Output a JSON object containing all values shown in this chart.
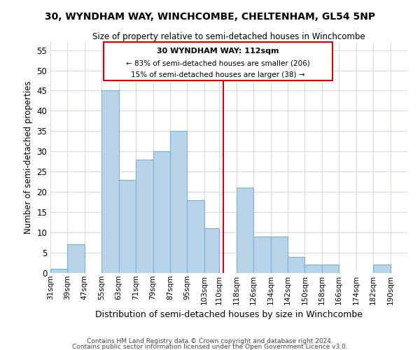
{
  "title": "30, WYNDHAM WAY, WINCHCOMBE, CHELTENHAM, GL54 5NP",
  "subtitle": "Size of property relative to semi-detached houses in Winchcombe",
  "xlabel": "Distribution of semi-detached houses by size in Winchcombe",
  "ylabel": "Number of semi-detached properties",
  "bin_labels": [
    "31sqm",
    "39sqm",
    "47sqm",
    "55sqm",
    "63sqm",
    "71sqm",
    "79sqm",
    "87sqm",
    "95sqm",
    "103sqm",
    "110sqm",
    "118sqm",
    "126sqm",
    "134sqm",
    "142sqm",
    "150sqm",
    "158sqm",
    "166sqm",
    "174sqm",
    "182sqm",
    "190sqm"
  ],
  "bin_edges": [
    31,
    39,
    47,
    55,
    63,
    71,
    79,
    87,
    95,
    103,
    110,
    118,
    126,
    134,
    142,
    150,
    158,
    166,
    174,
    182,
    190
  ],
  "bar_heights": [
    1,
    7,
    0,
    45,
    23,
    28,
    30,
    35,
    18,
    11,
    0,
    21,
    9,
    9,
    4,
    2,
    2,
    0,
    0,
    2,
    0
  ],
  "bar_color": "#b8d4ea",
  "bar_edge_color": "#7aafd4",
  "grid_color": "#d0d8e8",
  "vline_x": 112,
  "vline_color": "#cc0000",
  "annotation_title": "30 WYNDHAM WAY: 112sqm",
  "annotation_line1": "← 83% of semi-detached houses are smaller (206)",
  "annotation_line2": "15% of semi-detached houses are larger (38) →",
  "annotation_box_color": "white",
  "annotation_box_edge": "#cc0000",
  "ylim": [
    0,
    57
  ],
  "yticks": [
    0,
    5,
    10,
    15,
    20,
    25,
    30,
    35,
    40,
    45,
    50,
    55
  ],
  "footnote1": "Contains HM Land Registry data © Crown copyright and database right 2024.",
  "footnote2": "Contains public sector information licensed under the Open Government Licence v3.0."
}
